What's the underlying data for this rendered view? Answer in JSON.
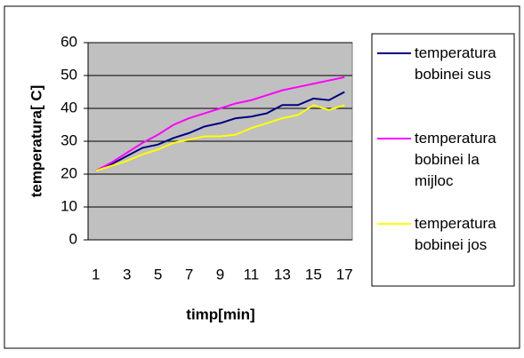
{
  "chart_data": {
    "type": "line",
    "x_label": "timp[min]",
    "y_label": "temperatura[  C]",
    "categories": [
      "1",
      null,
      "3",
      null,
      "5",
      null,
      "7",
      null,
      "9",
      null,
      "11",
      null,
      "13",
      null,
      "15",
      null,
      "17"
    ],
    "series": [
      {
        "name": "temperatura bobinei sus",
        "color": "#000080",
        "values": [
          21,
          23,
          25.5,
          28,
          29,
          31,
          32.5,
          34.5,
          35.5,
          37,
          37.5,
          38.5,
          41,
          41,
          43,
          42.5,
          45
        ]
      },
      {
        "name": "temperatura bobinei la mijloc",
        "color": "#ff00ff",
        "values": [
          21,
          23.5,
          26.5,
          29.5,
          32,
          35,
          37,
          38.5,
          40,
          41.5,
          42.5,
          44,
          45.5,
          46.5,
          47.5,
          48.5,
          49.5
        ]
      },
      {
        "name": "temperatura bobinei jos",
        "color": "#ffff00",
        "values": [
          21,
          22.5,
          24,
          26,
          27.5,
          29.5,
          30.5,
          31.5,
          31.5,
          32,
          34,
          35.5,
          37,
          38,
          41,
          39.5,
          41
        ]
      }
    ],
    "ylim": [
      0,
      60
    ],
    "yticks": [
      0,
      10,
      20,
      30,
      40,
      50,
      60
    ],
    "grid": true
  }
}
